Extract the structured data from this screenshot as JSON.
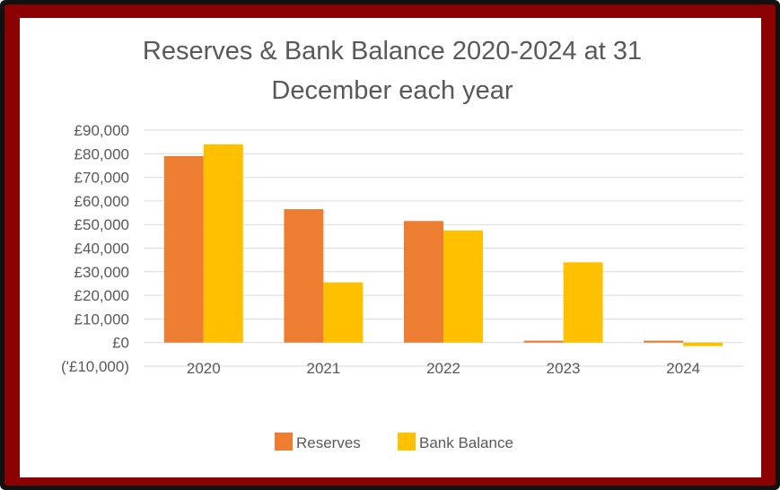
{
  "colors": {
    "reserves": "#ed7d31",
    "bank_balance": "#ffc000",
    "border_outer": "#111111",
    "border_inner": "#8b0000",
    "gridline": "#d9d9d9",
    "text": "#595959"
  },
  "chart_data": {
    "type": "bar",
    "title_lines": [
      "Reserves & Bank Balance 2020-2024 at 31",
      "December each year"
    ],
    "categories": [
      "2020",
      "2021",
      "2022",
      "2023",
      "2024"
    ],
    "series": [
      {
        "name": "Reserves",
        "values": [
          79000,
          56500,
          51500,
          800,
          800
        ]
      },
      {
        "name": "Bank Balance",
        "values": [
          84000,
          25500,
          47500,
          34000,
          -1500
        ]
      }
    ],
    "ylim": [
      -10000,
      90000
    ],
    "yticks": [
      -10000,
      0,
      10000,
      20000,
      30000,
      40000,
      50000,
      60000,
      70000,
      80000,
      90000
    ],
    "ytick_labels": [
      "('£10,000)",
      "£0",
      "£10,000",
      "£20,000",
      "£30,000",
      "£40,000",
      "£50,000",
      "£60,000",
      "£70,000",
      "£80,000",
      "£90,000"
    ],
    "grid": true,
    "legend_position": "bottom"
  }
}
